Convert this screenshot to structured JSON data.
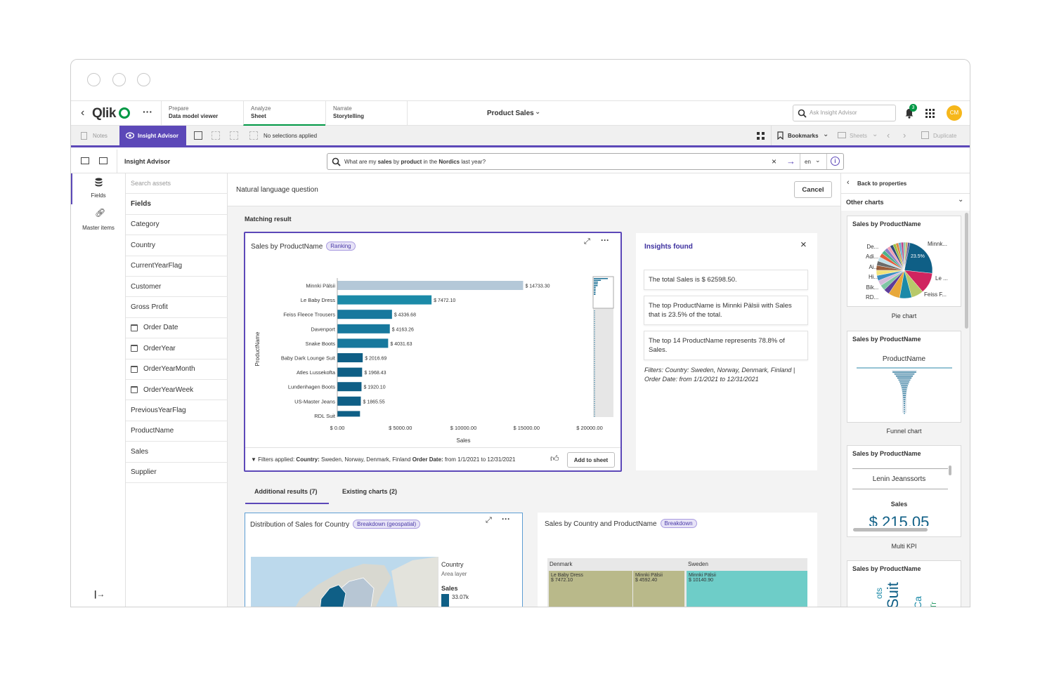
{
  "app": {
    "logo": "Qlik",
    "nav": [
      {
        "top": "Prepare",
        "bottom": "Data model viewer"
      },
      {
        "top": "Analyze",
        "bottom": "Sheet"
      },
      {
        "top": "Narrate",
        "bottom": "Storytelling"
      }
    ],
    "app_title": "Product Sales",
    "search_placeholder": "Ask Insight Advisor",
    "notification_count": "3",
    "avatar_initials": "CM"
  },
  "toolbar": {
    "notes": "Notes",
    "insight_advisor": "Insight Advisor",
    "selections": "No selections applied",
    "bookmarks": "Bookmarks",
    "sheets": "Sheets",
    "duplicate": "Duplicate"
  },
  "ia_bar": {
    "title": "Insight Advisor",
    "query_prefix": "What are my ",
    "query_b1": "sales",
    "query_mid1": " by ",
    "query_b2": "product",
    "query_mid2": " in the ",
    "query_b3": "Nordics",
    "query_suffix": " last year?",
    "lang": "en"
  },
  "left_rail": {
    "fields": "Fields",
    "master_items": "Master items"
  },
  "assets": {
    "search_placeholder": "Search assets",
    "header": "Fields",
    "fields": [
      {
        "label": "Category",
        "date": false
      },
      {
        "label": "Country",
        "date": false
      },
      {
        "label": "CurrentYearFlag",
        "date": false
      },
      {
        "label": "Customer",
        "date": false
      },
      {
        "label": "Gross Profit",
        "date": false
      },
      {
        "label": "Order Date",
        "date": true
      },
      {
        "label": "OrderYear",
        "date": true
      },
      {
        "label": "OrderYearMonth",
        "date": true
      },
      {
        "label": "OrderYearWeek",
        "date": true
      },
      {
        "label": "PreviousYearFlag",
        "date": false
      },
      {
        "label": "ProductName",
        "date": false
      },
      {
        "label": "Sales",
        "date": false
      },
      {
        "label": "Supplier",
        "date": false
      }
    ]
  },
  "main": {
    "header": "Natural language question",
    "cancel": "Cancel",
    "matching": "Matching result",
    "chart_title": "Sales by ProductName",
    "chart_badge": "Ranking",
    "filters_label": "Filters applied:",
    "filters_country_k": "Country:",
    "filters_country_v": "Sweden, Norway, Denmark, Finland",
    "filters_date_k": "Order Date:",
    "filters_date_v": "from 1/1/2021 to 12/31/2021",
    "add_to_sheet": "Add to sheet",
    "tabs": [
      "Additional results (7)",
      "Existing charts (2)"
    ],
    "dist_title": "Distribution of Sales for Country",
    "dist_badge": "Breakdown (geospatial)",
    "map_legend": {
      "title": "Country",
      "sub": "Area layer",
      "measure": "Sales",
      "value": "33.07k"
    },
    "treemap_title": "Sales by Country and ProductName",
    "treemap_badge": "Breakdown",
    "treemap": {
      "groups": [
        "Denmark",
        "Sweden"
      ],
      "cells": [
        {
          "name": "Le Baby Dress",
          "value": "$ 7472.10"
        },
        {
          "name": "Minnki Pälsii",
          "value": "$ 4592.40"
        },
        {
          "name": "Minnki Pälsii",
          "value": "$ 10140.90"
        }
      ]
    }
  },
  "insights": {
    "title": "Insights found",
    "items": [
      "The total Sales is $ 62598.50.",
      "The top ProductName is Minnki Pälsii with Sales that is 23.5% of the total.",
      "The top 14 ProductName represents 78.8% of Sales."
    ],
    "filters": "Filters: Country: Sweden, Norway, Denmark, Finland | Order Date: from 1/1/2021 to 12/31/2021"
  },
  "right_panel": {
    "back": "Back to properties",
    "other": "Other charts",
    "cards": [
      {
        "title": "Sales by ProductName",
        "caption": "Pie chart"
      },
      {
        "title": "Sales by ProductName",
        "caption": "Funnel chart"
      },
      {
        "title": "Sales by ProductName",
        "caption": "Multi KPI"
      },
      {
        "title": "Sales by ProductName",
        "caption": ""
      }
    ],
    "pie_labels": {
      "l1": "De...",
      "l2": "Adi...",
      "l3": "Ai...",
      "l4": "Hi...",
      "l5": "Bik...",
      "l6": "RD...",
      "r1": "Minnk...",
      "r2": "Le ...",
      "r3": "Feiss F...",
      "pct": "23.5%"
    },
    "funnel_label": "ProductName",
    "kpi_item": "Lenin Jeanssorts",
    "kpi_measure": "Sales",
    "kpi_value": "$ 215.05",
    "wordcloud": [
      "ots",
      "Suit",
      "Ca",
      "Tr"
    ]
  },
  "colors": {
    "accent": "#5c48b8",
    "bar_top": "#b4c8d8",
    "bar_teal": "#1b8aa8",
    "bar_dark": "#0f5f86",
    "qlik_green": "#009845"
  },
  "chart_data": {
    "type": "bar",
    "title": "Sales by ProductName",
    "orientation": "horizontal",
    "xlabel": "Sales",
    "ylabel": "ProductName",
    "xlim": [
      0,
      20000
    ],
    "xticks": [
      "$ 0.00",
      "$ 5000.00",
      "$ 10000.00",
      "$ 15000.00",
      "$ 20000.00"
    ],
    "categories": [
      "Minnki Pälsii",
      "Le Baby Dress",
      "Feiss Fleece Trousers",
      "Davenport",
      "Snake Boots",
      "Baby Dark Lounge Suit",
      "Atles Lussekofta",
      "Lundenhagen Boots",
      "US-Master Jeans",
      "RDL Suit"
    ],
    "values": [
      14733.3,
      7472.1,
      4336.68,
      4163.26,
      4031.63,
      2016.69,
      1968.43,
      1920.1,
      1865.55,
      1800
    ],
    "labels": [
      "$ 14733.30",
      "$ 7472.10",
      "$ 4336.68",
      "$ 4163.26",
      "$ 4031.63",
      "$ 2016.69",
      "$ 1968.43",
      "$ 1920.10",
      "$ 1865.55",
      ""
    ]
  }
}
